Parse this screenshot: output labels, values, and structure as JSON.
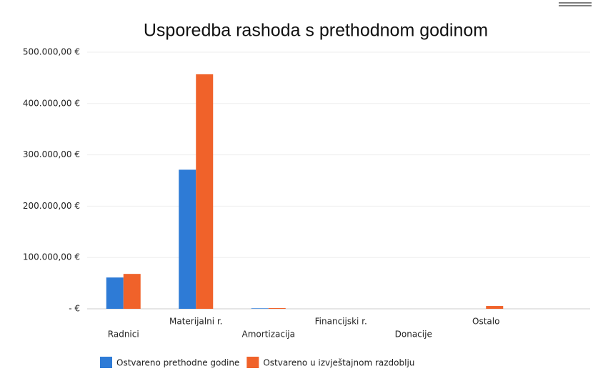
{
  "chart_data": {
    "type": "bar",
    "title": "Usporedba rashoda s prethodnom godinom",
    "categories": [
      "Radnici",
      "Materijalni r.",
      "Amortizacija",
      "Financijski r.",
      "Donacije",
      "Ostalo"
    ],
    "series": [
      {
        "name": "Ostvareno prethodne godine",
        "color": "#2e7bd6",
        "values": [
          61000,
          271000,
          1000,
          0,
          0,
          0
        ]
      },
      {
        "name": "Ostvareno u izvještajnom razdoblju",
        "color": "#f0622a",
        "values": [
          68000,
          457000,
          1500,
          0,
          0,
          5500
        ]
      }
    ],
    "ylim": [
      0,
      500000
    ],
    "yticks": [
      {
        "value": 0,
        "label": "- €"
      },
      {
        "value": 100000,
        "label": "100.000,00 €"
      },
      {
        "value": 200000,
        "label": "200.000,00 €"
      },
      {
        "value": 300000,
        "label": "300.000,00 €"
      },
      {
        "value": 400000,
        "label": "400.000,00 €"
      },
      {
        "value": 500000,
        "label": "500.000,00 €"
      }
    ],
    "grid": true,
    "legend": "bottom"
  }
}
